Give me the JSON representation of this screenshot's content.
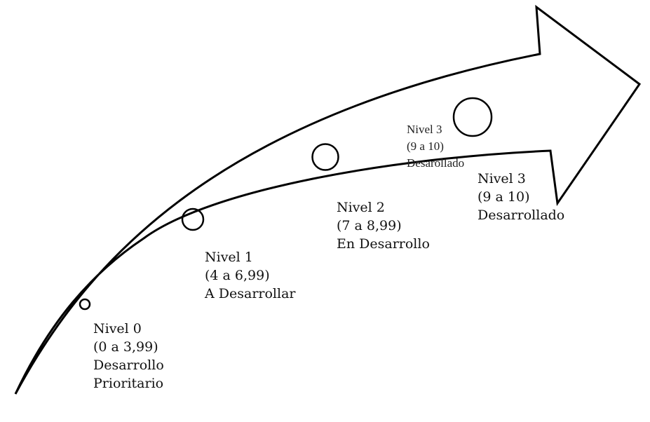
{
  "levels": [
    {
      "title": "Nivel 0",
      "range": "(0 a 3,99)",
      "desc1": "Desarrollo",
      "desc2": "Prioritario"
    },
    {
      "title": "Nivel 1",
      "range": "(4 a 6,99)",
      "desc1": "A Desarrollar"
    },
    {
      "title": "Nivel 2",
      "range": "(7 a 8,99)",
      "desc1": "En Desarrollo"
    },
    {
      "title": "Nivel 3",
      "range": "(9 a 10)",
      "desc1": "Desarollado"
    },
    {
      "title": "Nivel 3",
      "range": "(9 a 10)",
      "desc1": "Desarrollado"
    }
  ]
}
